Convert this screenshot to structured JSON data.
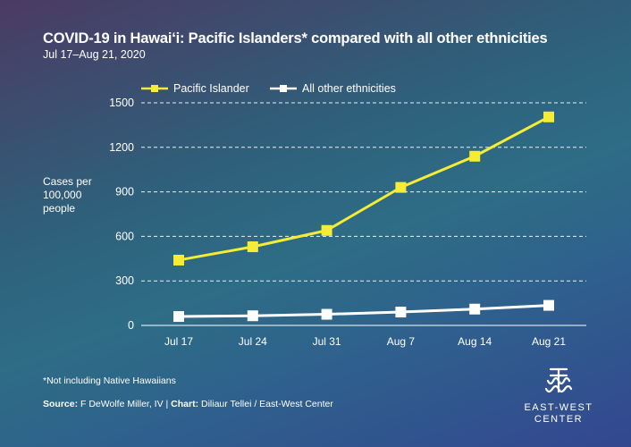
{
  "title": "COVID-19 in Hawai‘i: Pacific Islanders* compared with all other ethnicities",
  "subtitle": "Jul 17–Aug 21, 2020",
  "footnote": "*Not including Native Hawaiians",
  "source": {
    "source_label": "Source:",
    "source_text": "F DeWolfe Miller, IV",
    "separator": "|",
    "chart_label": "Chart:",
    "chart_text": "Diliaur Tellei / East-West Center"
  },
  "logo": {
    "line1": "EAST-WEST",
    "line2": "CENTER",
    "icon": "east-west-center-logo"
  },
  "colors": {
    "pacific_islander": "#f5ec35",
    "all_other": "#ffffff",
    "grid": "#ffffff"
  },
  "chart_data": {
    "type": "line",
    "title": "COVID-19 in Hawai‘i: Pacific Islanders* compared with all other ethnicities",
    "subtitle": "Jul 17–Aug 21, 2020",
    "xlabel": "",
    "ylabel": "Cases per\n100,000\npeople",
    "categories": [
      "Jul 17",
      "Jul 24",
      "Jul 31",
      "Aug 7",
      "Aug 14",
      "Aug 21"
    ],
    "ylim": [
      0,
      1500
    ],
    "yticks": [
      0,
      300,
      600,
      900,
      1200,
      1500
    ],
    "grid": "horizontal dashed",
    "legend": "top-left",
    "series": [
      {
        "name": "Pacific Islander",
        "color": "#f5ec35",
        "values": [
          440,
          530,
          640,
          930,
          1140,
          1405
        ]
      },
      {
        "name": "All other ethnicities",
        "color": "#ffffff",
        "values": [
          60,
          65,
          75,
          90,
          110,
          135
        ]
      }
    ]
  }
}
